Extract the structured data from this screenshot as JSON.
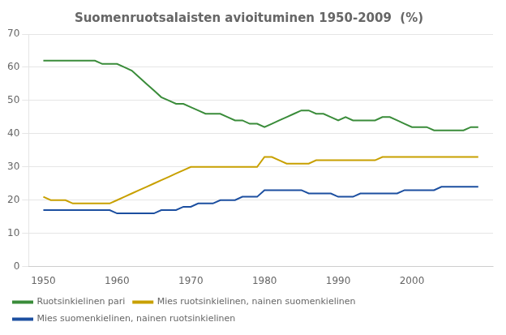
{
  "chart_data": {
    "type": "line",
    "title": "Suomenruotsalaisten avioituminen 1950-2009  (%)",
    "x": [
      1950,
      1951,
      1952,
      1953,
      1954,
      1955,
      1956,
      1957,
      1958,
      1959,
      1960,
      1961,
      1962,
      1963,
      1964,
      1965,
      1966,
      1967,
      1968,
      1969,
      1970,
      1971,
      1972,
      1973,
      1974,
      1975,
      1976,
      1977,
      1978,
      1979,
      1980,
      1981,
      1982,
      1983,
      1984,
      1985,
      1986,
      1987,
      1988,
      1989,
      1990,
      1991,
      1992,
      1993,
      1994,
      1995,
      1996,
      1997,
      1998,
      1999,
      2000,
      2001,
      2002,
      2003,
      2004,
      2005,
      2006,
      2007,
      2008,
      2009
    ],
    "series": [
      {
        "name": "Ruotsinkielinen pari",
        "color": "#3a8c3a",
        "values": [
          62,
          62,
          62,
          62,
          62,
          62,
          62,
          62,
          61,
          61,
          61,
          60,
          59,
          57,
          55,
          53,
          51,
          50,
          49,
          49,
          48,
          47,
          46,
          46,
          46,
          45,
          44,
          44,
          43,
          43,
          42,
          43,
          44,
          45,
          46,
          47,
          47,
          46,
          46,
          45,
          44,
          45,
          44,
          44,
          44,
          44,
          45,
          45,
          44,
          43,
          42,
          42,
          42,
          41,
          41,
          41,
          41,
          41,
          42,
          42
        ]
      },
      {
        "name": "Mies ruotsinkielinen, nainen suomenkielinen",
        "color": "#c8a000",
        "values": [
          21,
          20,
          20,
          20,
          19,
          19,
          19,
          19,
          19,
          19,
          20,
          21,
          22,
          23,
          24,
          25,
          26,
          27,
          28,
          29,
          30,
          30,
          30,
          30,
          30,
          30,
          30,
          30,
          30,
          30,
          33,
          33,
          32,
          31,
          31,
          31,
          31,
          32,
          32,
          32,
          32,
          32,
          32,
          32,
          32,
          32,
          33,
          33,
          33,
          33,
          33,
          33,
          33,
          33,
          33,
          33,
          33,
          33,
          33,
          33
        ]
      },
      {
        "name": "Mies suomenkielinen, nainen ruotsinkielinen",
        "color": "#1c4fa0",
        "values": [
          17,
          17,
          17,
          17,
          17,
          17,
          17,
          17,
          17,
          17,
          16,
          16,
          16,
          16,
          16,
          16,
          17,
          17,
          17,
          18,
          18,
          19,
          19,
          19,
          20,
          20,
          20,
          21,
          21,
          21,
          23,
          23,
          23,
          23,
          23,
          23,
          22,
          22,
          22,
          22,
          21,
          21,
          21,
          22,
          22,
          22,
          22,
          22,
          22,
          23,
          23,
          23,
          23,
          23,
          24,
          24,
          24,
          24,
          24,
          24
        ]
      }
    ],
    "xlim": [
      1948,
      2011
    ],
    "xticks": [
      1950,
      1960,
      1970,
      1980,
      1990,
      2000
    ],
    "ylim": [
      0,
      70
    ],
    "yticks": [
      0,
      10,
      20,
      30,
      40,
      50,
      60,
      70
    ],
    "grid": "y",
    "legend": "bottom"
  }
}
